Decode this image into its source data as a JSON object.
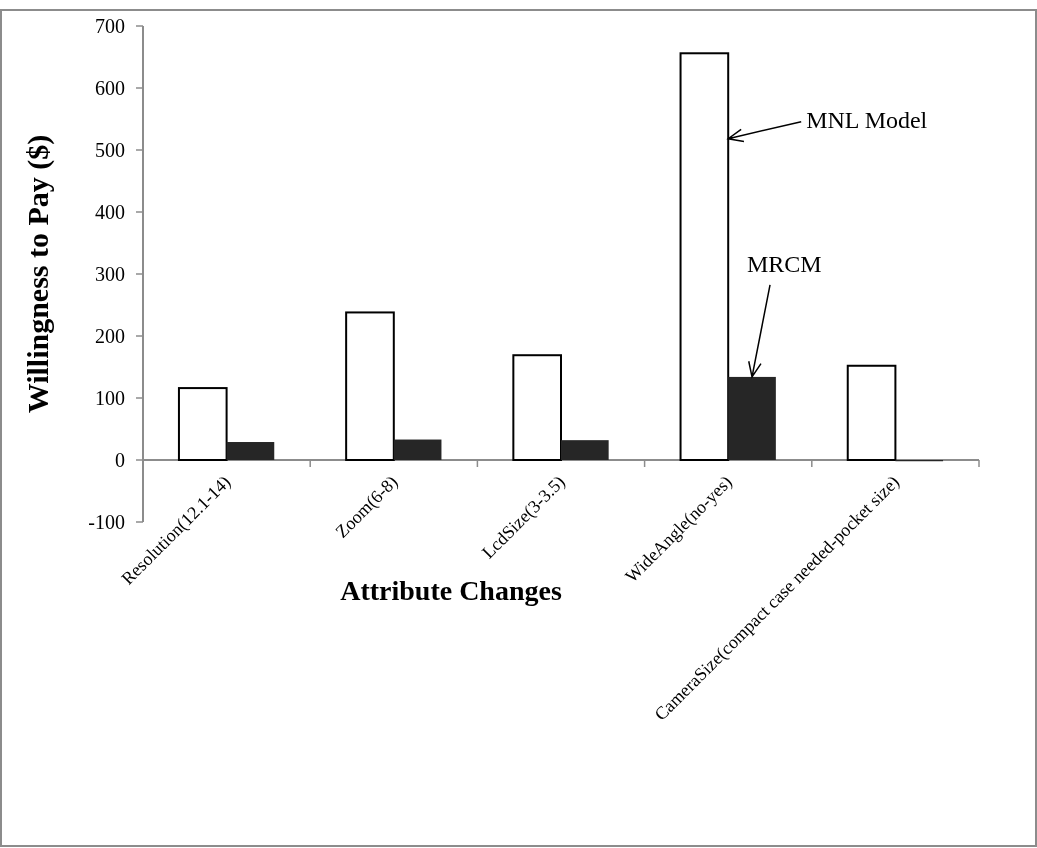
{
  "chart_data": {
    "type": "bar",
    "xlabel": "Attribute Changes",
    "ylabel": "Willingness to Pay ($)",
    "categories": [
      "Resolution(12.1-14)",
      "Zoom(6-8)",
      "LcdSize(3-3.5)",
      "WideAngle(no-yes)",
      "CameraSize(compact case needed-pocket size)"
    ],
    "series": [
      {
        "name": "MNL Model",
        "color": "#ffffff",
        "values": [
          116,
          238,
          169,
          656,
          152
        ]
      },
      {
        "name": "MRCM",
        "color": "#262626",
        "values": [
          29,
          33,
          32,
          134,
          -2
        ]
      }
    ],
    "ylim": [
      -100,
      700
    ],
    "yticks": [
      -100,
      0,
      100,
      200,
      300,
      400,
      500,
      600,
      700
    ],
    "grid": false,
    "legend": "right"
  }
}
